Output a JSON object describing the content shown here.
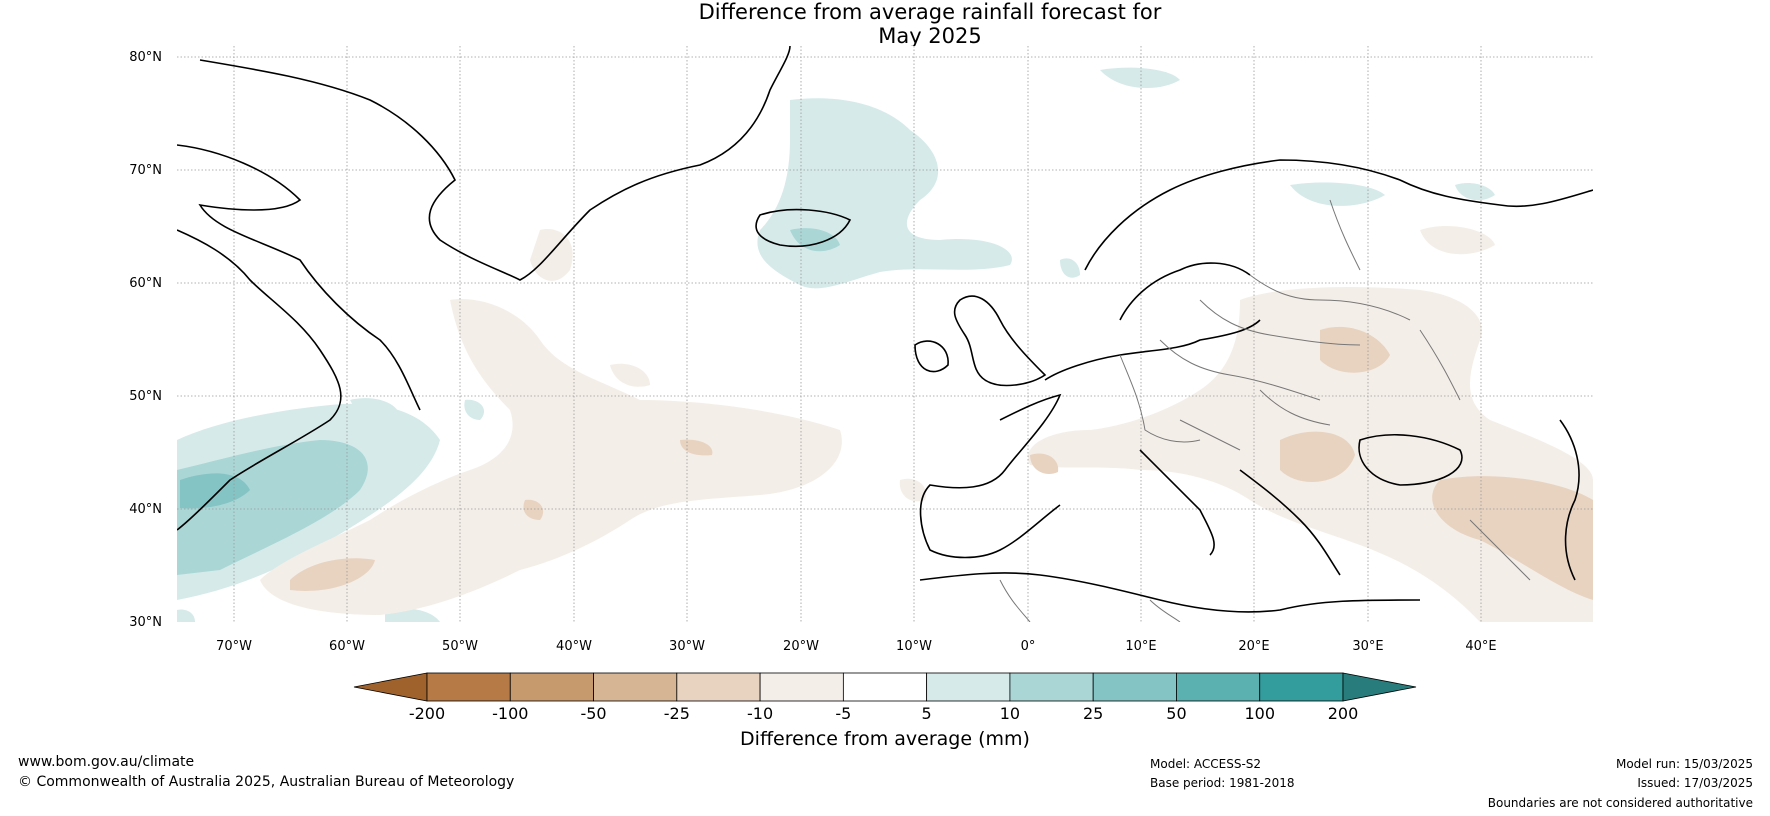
{
  "title": {
    "line1": "Difference from average rainfall forecast for",
    "line2": "May 2025"
  },
  "lat_labels": [
    "80°N",
    "70°N",
    "60°N",
    "50°N",
    "40°N",
    "30°N"
  ],
  "lon_labels": [
    "70°W",
    "60°W",
    "50°W",
    "40°W",
    "30°W",
    "20°W",
    "10°W",
    "0°",
    "10°E",
    "20°E",
    "30°E",
    "40°E"
  ],
  "colorbar": {
    "ticks": [
      "-200",
      "-100",
      "-50",
      "-25",
      "-10",
      "-5",
      "5",
      "10",
      "25",
      "50",
      "100",
      "200"
    ],
    "colors": [
      "#a0622c",
      "#b57a45",
      "#c79a6e",
      "#d6b594",
      "#e8d3c1",
      "#f4eee8",
      "#ffffff",
      "#d6eaea",
      "#aad6d6",
      "#85c4c4",
      "#5bb0b0",
      "#339c9c",
      "#287c7c"
    ],
    "label": "Difference from average (mm)"
  },
  "footer": {
    "website": "www.bom.gov.au/climate",
    "copyright": "© Commonwealth of Australia 2025, Australian Bureau of Meteorology",
    "model": "Model: ACCESS-S2",
    "base_period": "Base period: 1981-2018",
    "model_run": "Model run: 15/03/2025",
    "issued": "Issued: 17/03/2025",
    "disclaimer": "Boundaries are not considered authoritative"
  }
}
